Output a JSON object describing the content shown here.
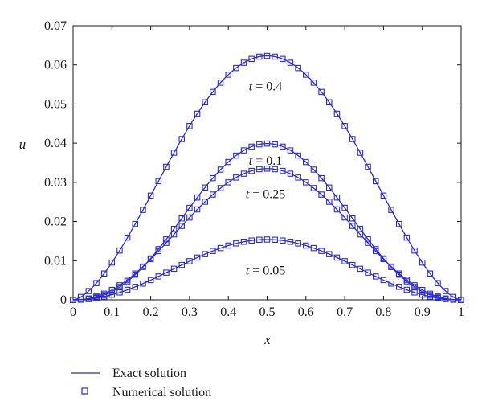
{
  "chart_data": {
    "type": "line",
    "xlabel": "x",
    "ylabel": "u",
    "xlim": [
      0,
      1
    ],
    "ylim": [
      0,
      0.07
    ],
    "xticks": [
      "0",
      "0.1",
      "0.2",
      "0.3",
      "0.4",
      "0.5",
      "0.6",
      "0.7",
      "0.8",
      "0.9",
      "1"
    ],
    "yticks": [
      "0",
      "0.01",
      "0.02",
      "0.03",
      "0.04",
      "0.05",
      "0.06",
      "0.07"
    ],
    "grid": false,
    "legend_placement": "bottom-left-outside",
    "legend": [
      {
        "label": "Exact solution",
        "style": "line"
      },
      {
        "label": "Numerical solution",
        "style": "square-marker"
      }
    ],
    "series_color": "#2b2bd6",
    "curves": [
      {
        "t": "0.4",
        "peak": 0.0623,
        "shape": "sin-power",
        "exponent": 1.6
      },
      {
        "t": "0.1",
        "peak": 0.0399,
        "shape": "sin-power",
        "exponent": 2.5
      },
      {
        "t": "0.25",
        "peak": 0.0335,
        "shape": "sin-power",
        "exponent": 2.2
      },
      {
        "t": "0.05",
        "peak": 0.0154,
        "shape": "sin-power",
        "exponent": 2.1
      }
    ],
    "annotations": [
      {
        "var": "t",
        "text": " = 0.4",
        "x": 0.5,
        "y": 0.0545
      },
      {
        "var": "t",
        "text": " = 0.1",
        "x": 0.5,
        "y": 0.0355
      },
      {
        "var": "t",
        "text": " = 0.25",
        "x": 0.5,
        "y": 0.027
      },
      {
        "var": "t",
        "text": " = 0.05",
        "x": 0.5,
        "y": 0.0075
      }
    ]
  }
}
